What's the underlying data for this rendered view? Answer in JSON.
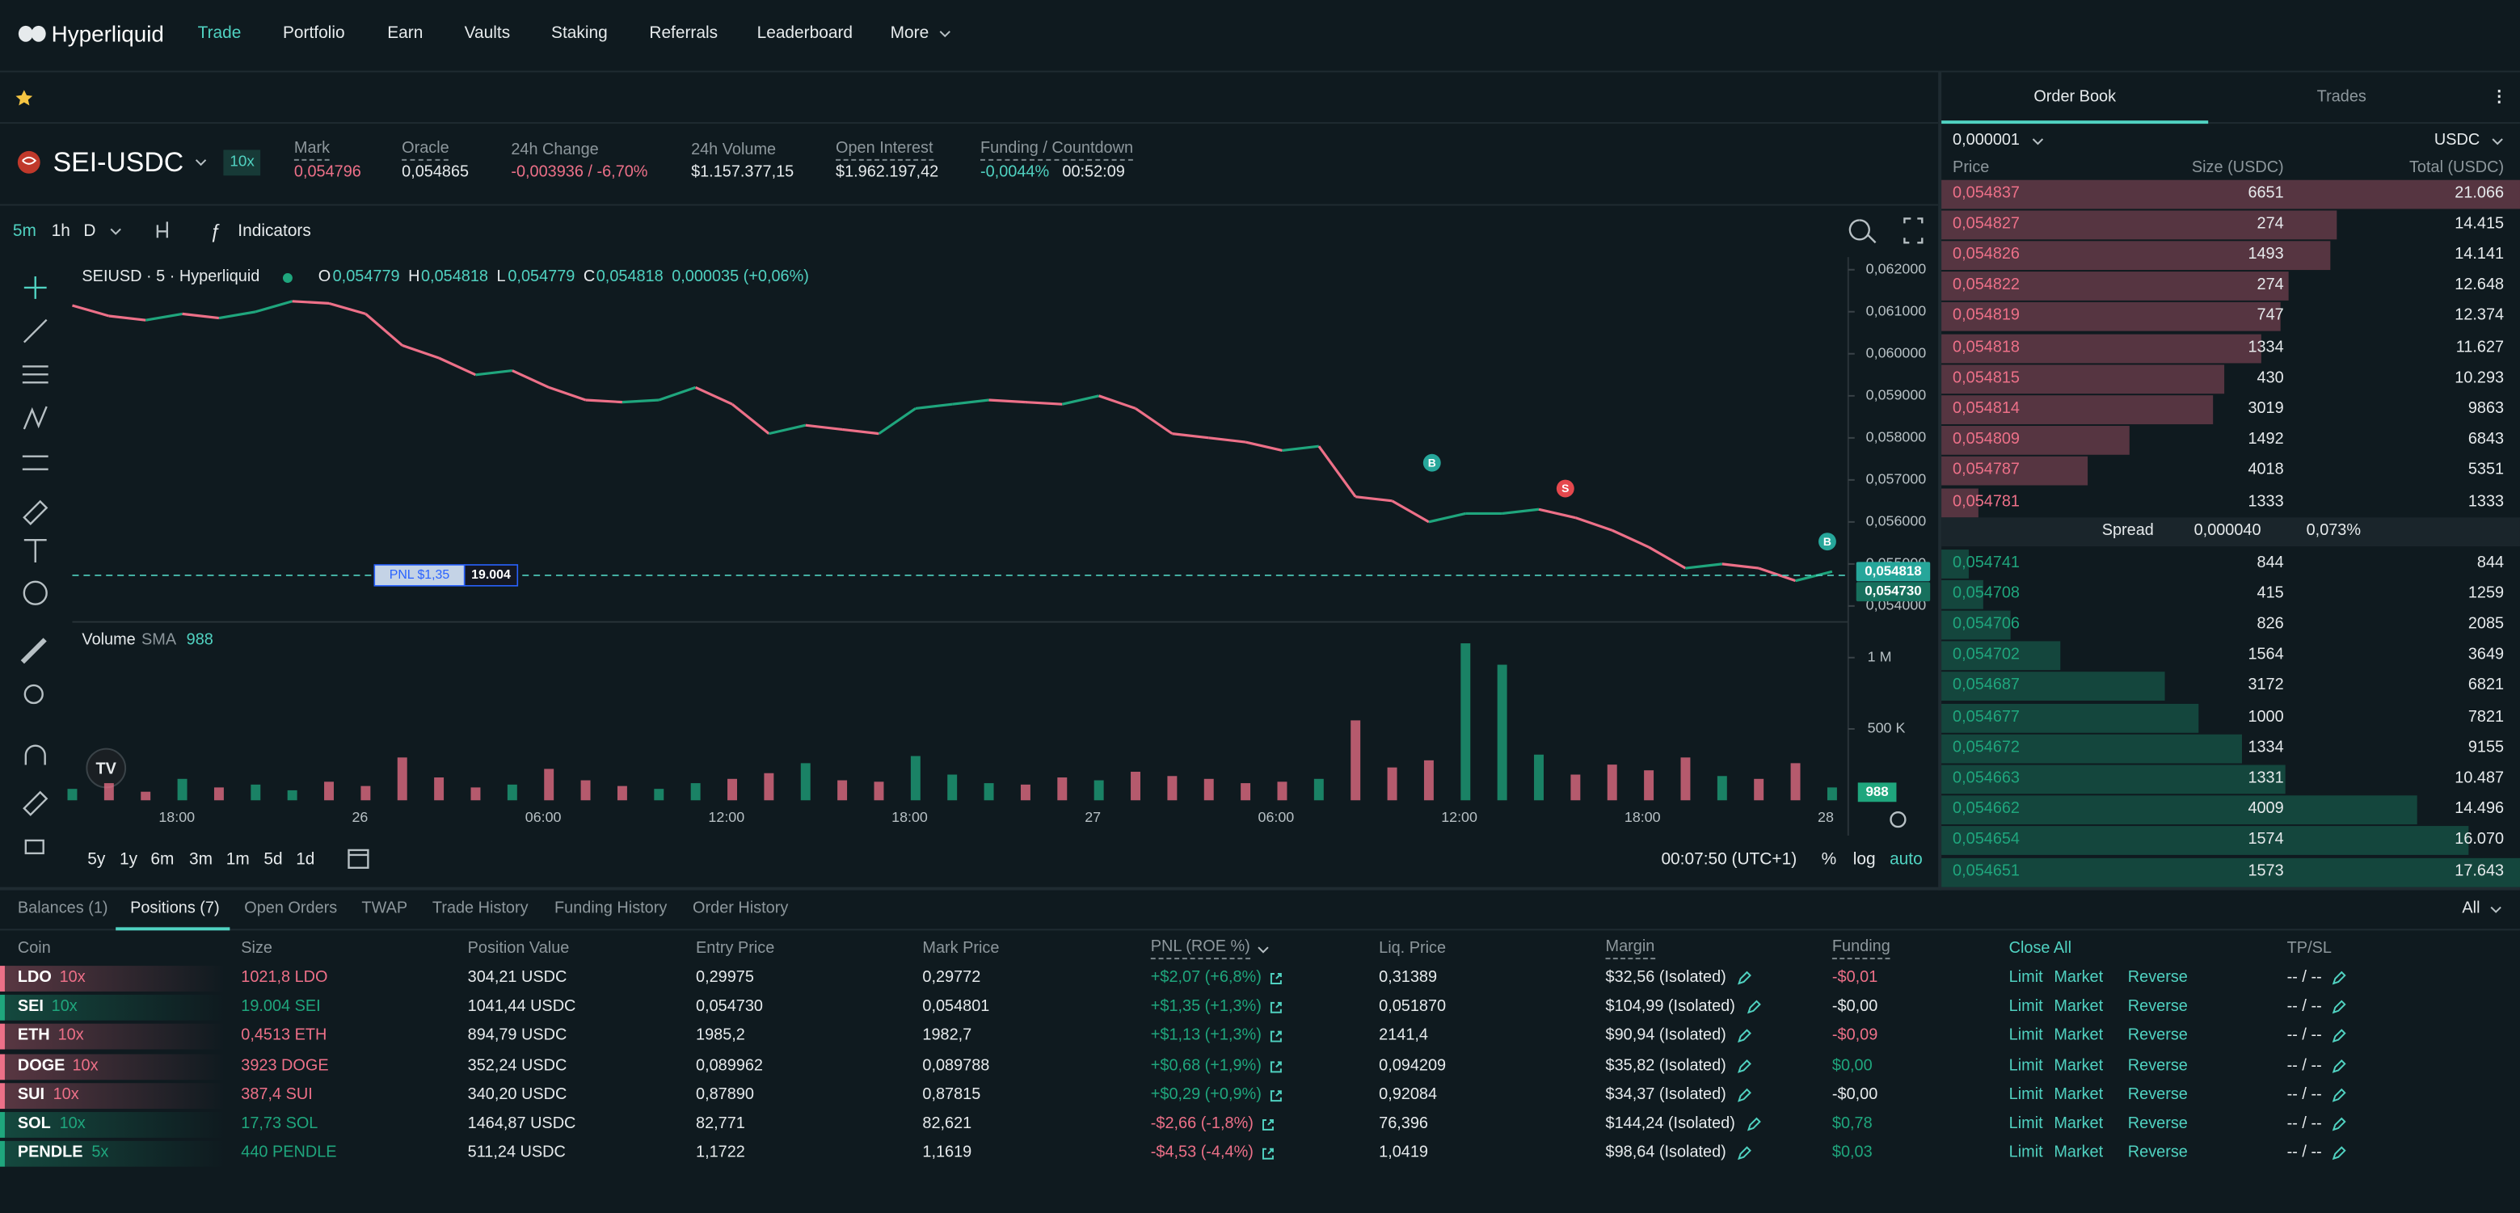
{
  "nav": {
    "brand": "Hyperliquid",
    "items": [
      "Trade",
      "Portfolio",
      "Earn",
      "Vaults",
      "Staking",
      "Referrals",
      "Leaderboard",
      "More"
    ]
  },
  "market": {
    "pair": "SEI-USDC",
    "leverage": "10x",
    "stats": [
      {
        "label": "Mark",
        "value": "0,054796"
      },
      {
        "label": "Oracle",
        "value": "0,054865"
      },
      {
        "label": "24h Change",
        "value": "-0,003936 / -6,70%"
      },
      {
        "label": "24h Volume",
        "value": "$1.157.377,15"
      },
      {
        "label": "Open Interest",
        "value": "$1.962.197,42"
      },
      {
        "label": "Funding / Countdown",
        "value": "-0,0044%",
        "countdown": "00:52:09"
      }
    ]
  },
  "chart_toolbar": {
    "intervals": [
      "5m",
      "1h",
      "D"
    ],
    "indicators": "Indicators"
  },
  "chart_data": [
    {
      "type": "line",
      "title": "SEIUSD · 5 · Hyperliquid",
      "ohlc": [
        {
          "key": "O",
          "value": "0,054779"
        },
        {
          "key": "H",
          "value": "0,054818"
        },
        {
          "key": "L",
          "value": "0,054779"
        },
        {
          "key": "C",
          "value": "0,054818"
        }
      ],
      "change": "0,000035 (+0,06%)",
      "values": [
        0.06115,
        0.0609,
        0.0608,
        0.06095,
        0.06085,
        0.061,
        0.06125,
        0.0612,
        0.06095,
        0.0602,
        0.0599,
        0.0595,
        0.0596,
        0.0592,
        0.0589,
        0.05885,
        0.0589,
        0.0592,
        0.0588,
        0.0581,
        0.0583,
        0.0582,
        0.0581,
        0.0587,
        0.0588,
        0.0589,
        0.05885,
        0.0588,
        0.059,
        0.0587,
        0.0581,
        0.058,
        0.0579,
        0.0577,
        0.0578,
        0.0566,
        0.0565,
        0.056,
        0.0562,
        0.0562,
        0.0563,
        0.0561,
        0.0558,
        0.0554,
        0.0549,
        0.055,
        0.0549,
        0.0546,
        0.05482
      ],
      "colors": {
        "up": "#1fa67d",
        "down": "#ed7088"
      },
      "ylim": [
        0.05366,
        0.0623
      ],
      "yticks": [
        {
          "value": 0.062,
          "label": "0,062000"
        },
        {
          "value": 0.061,
          "label": "0,061000"
        },
        {
          "value": 0.06,
          "label": "0,060000"
        },
        {
          "value": 0.059,
          "label": "0,059000"
        },
        {
          "value": 0.058,
          "label": "0,058000"
        },
        {
          "value": 0.057,
          "label": "0,057000"
        },
        {
          "value": 0.056,
          "label": "0,056000"
        },
        {
          "value": 0.055,
          "label": "0,055000"
        },
        {
          "value": 0.054,
          "label": "0,054000"
        }
      ],
      "current_price": {
        "value": 0.054818,
        "label": "0,054818"
      },
      "position_price": {
        "value": 0.05473,
        "label": "0,054730"
      },
      "pnl_label": "PNL $1,35",
      "position_size": "19.004",
      "annotations": [
        {
          "text": "B",
          "color": "#26a69a"
        },
        {
          "text": "S",
          "color": "#e5484d"
        },
        {
          "text": "B",
          "color": "#26a69a"
        }
      ]
    },
    {
      "type": "bar",
      "title": "Volume",
      "indicator": "SMA",
      "indicator_value": "988",
      "values": [
        80000,
        120000,
        60000,
        150000,
        90000,
        110000,
        70000,
        130000,
        100000,
        300000,
        160000,
        90000,
        110000,
        220000,
        140000,
        100000,
        80000,
        120000,
        150000,
        190000,
        260000,
        140000,
        130000,
        310000,
        180000,
        120000,
        110000,
        160000,
        140000,
        200000,
        170000,
        150000,
        120000,
        130000,
        150000,
        560000,
        230000,
        280000,
        1100000,
        950000,
        320000,
        180000,
        250000,
        210000,
        300000,
        170000,
        150000,
        260000,
        90000
      ],
      "ylim": [
        0,
        1160000
      ],
      "yticks": [
        {
          "value": 1000000,
          "label": "1 M"
        },
        {
          "value": 500000,
          "label": "500 K"
        }
      ],
      "current_label": "988"
    }
  ],
  "time_axis": {
    "labels": [
      "18:00",
      "26",
      "06:00",
      "12:00",
      "18:00",
      "27",
      "06:00",
      "12:00",
      "18:00",
      "28"
    ]
  },
  "chart_footer": {
    "ranges": [
      "5y",
      "1y",
      "6m",
      "3m",
      "1m",
      "5d",
      "1d"
    ],
    "time": "00:07:50 (UTC+1)",
    "options": [
      "%",
      "log",
      "auto"
    ]
  },
  "order_book": {
    "tabs": [
      "Order Book",
      "Trades"
    ],
    "tick": "0,000001",
    "currency": "USDC",
    "headers": [
      "Price",
      "Size (USDC)",
      "Total (USDC)"
    ],
    "ask_color": "#ed7088",
    "bid_color": "#1fa67d",
    "asks": [
      {
        "price": "0,054837",
        "size": 6651,
        "total": {
          "value": 21066,
          "label": "21.066"
        }
      },
      {
        "price": "0,054827",
        "size": 274,
        "total": {
          "value": 14415,
          "label": "14.415"
        }
      },
      {
        "price": "0,054826",
        "size": 1493,
        "total": {
          "value": 14141,
          "label": "14.141"
        }
      },
      {
        "price": "0,054822",
        "size": 274,
        "total": {
          "value": 12648,
          "label": "12.648"
        }
      },
      {
        "price": "0,054819",
        "size": 747,
        "total": {
          "value": 12374,
          "label": "12.374"
        }
      },
      {
        "price": "0,054818",
        "size": 1334,
        "total": {
          "value": 11627,
          "label": "11.627"
        }
      },
      {
        "price": "0,054815",
        "size": 430,
        "total": {
          "value": 10293,
          "label": "10.293"
        }
      },
      {
        "price": "0,054814",
        "size": 3019,
        "total": 9863
      },
      {
        "price": "0,054809",
        "size": 1492,
        "total": 6843
      },
      {
        "price": "0,054787",
        "size": 4018,
        "total": 5351
      },
      {
        "price": "0,054781",
        "size": 1333,
        "total": 1333
      }
    ],
    "spread": {
      "label": "Spread",
      "value": "0,000040",
      "percent": "0,073%"
    },
    "bids": [
      {
        "price": "0,054741",
        "size": 844,
        "total": 844
      },
      {
        "price": "0,054708",
        "size": 415,
        "total": 1259
      },
      {
        "price": "0,054706",
        "size": 826,
        "total": 2085
      },
      {
        "price": "0,054702",
        "size": 1564,
        "total": 3649
      },
      {
        "price": "0,054687",
        "size": 3172,
        "total": 6821
      },
      {
        "price": "0,054677",
        "size": 1000,
        "total": 7821
      },
      {
        "price": "0,054672",
        "size": 1334,
        "total": 9155
      },
      {
        "price": "0,054663",
        "size": 1331,
        "total": {
          "value": 10487,
          "label": "10.487"
        }
      },
      {
        "price": "0,054662",
        "size": 4009,
        "total": {
          "value": 14496,
          "label": "14.496"
        }
      },
      {
        "price": "0,054654",
        "size": 1574,
        "total": {
          "value": 16070,
          "label": "16.070"
        }
      },
      {
        "price": "0,054651",
        "size": 1573,
        "total": {
          "value": 17643,
          "label": "17.643"
        }
      }
    ]
  },
  "positions": {
    "tabs": [
      "Balances (1)",
      "Positions (7)",
      "Open Orders",
      "TWAP",
      "Trade History",
      "Funding History",
      "Order History"
    ],
    "filter": "All",
    "headers": [
      "Coin",
      "Size",
      "Position Value",
      "Entry Price",
      "Mark Price",
      "PNL (ROE %)",
      "Liq. Price",
      "Margin",
      "Funding",
      "Close All",
      "TP/SL"
    ],
    "actions": [
      "Limit",
      "Market",
      "Reverse"
    ],
    "rows": [
      {
        "coin": "LDO",
        "leverage": "10x",
        "size": "1021,8 LDO",
        "value": "304,21 USDC",
        "entry": "0,29975",
        "mark": "0,29772",
        "pnl": "+$2,07 (+6,8%)",
        "liq": "0,31389",
        "margin": "$32,56 (Isolated)",
        "funding": "-$0,01",
        "tpsl": "-- / --",
        "color": "#ed7088",
        "funding_color": "#ed7088"
      },
      {
        "coin": "SEI",
        "leverage": "10x",
        "size": "19.004 SEI",
        "value": "1041,44 USDC",
        "entry": "0,054730",
        "mark": "0,054801",
        "pnl": "+$1,35 (+1,3%)",
        "liq": "0,051870",
        "margin": "$104,99 (Isolated)",
        "funding": "-$0,00",
        "tpsl": "-- / --",
        "color": "#1fa67d",
        "funding_color": "#e6eaec"
      },
      {
        "coin": "ETH",
        "leverage": "10x",
        "size": "0,4513 ETH",
        "value": "894,79 USDC",
        "entry": "1985,2",
        "mark": "1982,7",
        "pnl": "+$1,13 (+1,3%)",
        "liq": "2141,4",
        "margin": "$90,94 (Isolated)",
        "funding": "-$0,09",
        "tpsl": "-- / --",
        "color": "#ed7088",
        "funding_color": "#ed7088"
      },
      {
        "coin": "DOGE",
        "leverage": "10x",
        "size": "3923 DOGE",
        "value": "352,24 USDC",
        "entry": "0,089962",
        "mark": "0,089788",
        "pnl": "+$0,68 (+1,9%)",
        "liq": "0,094209",
        "margin": "$35,82 (Isolated)",
        "funding": "$0,00",
        "tpsl": "-- / --",
        "color": "#ed7088",
        "funding_color": "#1fa67d"
      },
      {
        "coin": "SUI",
        "leverage": "10x",
        "size": "387,4 SUI",
        "value": "340,20 USDC",
        "entry": "0,87890",
        "mark": "0,87815",
        "pnl": "+$0,29 (+0,9%)",
        "liq": "0,92084",
        "margin": "$34,37 (Isolated)",
        "funding": "-$0,00",
        "tpsl": "-- / --",
        "color": "#ed7088",
        "funding_color": "#e6eaec"
      },
      {
        "coin": "SOL",
        "leverage": "10x",
        "size": "17,73 SOL",
        "value": "1464,87 USDC",
        "entry": "82,771",
        "mark": "82,621",
        "pnl": "-$2,66 (-1,8%)",
        "liq": "76,396",
        "margin": "$144,24 (Isolated)",
        "funding": "$0,78",
        "tpsl": "-- / --",
        "color": "#1fa67d",
        "funding_color": "#1fa67d"
      },
      {
        "coin": "PENDLE",
        "leverage": "5x",
        "size": "440 PENDLE",
        "value": "511,24 USDC",
        "entry": "1,1722",
        "mark": "1,1619",
        "pnl": "-$4,53 (-4,4%)",
        "liq": "1,0419",
        "margin": "$98,64 (Isolated)",
        "funding": "$0,03",
        "tpsl": "-- / --",
        "color": "#1fa67d",
        "funding_color": "#1fa67d"
      }
    ]
  }
}
